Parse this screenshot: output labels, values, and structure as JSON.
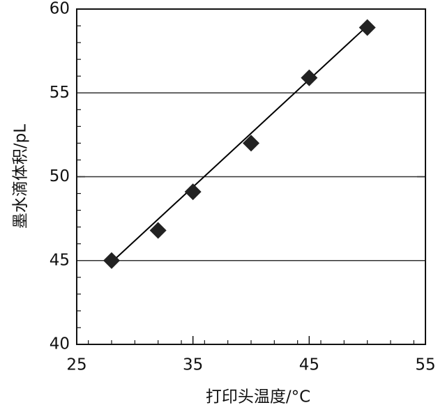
{
  "chart_data": {
    "type": "scatter",
    "x_label": "打印头温度/°C",
    "y_label": "墨水滴体积/pL",
    "x": [
      28,
      32,
      35,
      40,
      45,
      50
    ],
    "values": [
      45,
      46.8,
      49.1,
      52,
      55.9,
      58.9
    ],
    "color": "#222222",
    "fit_line": {
      "x": [
        28,
        50
      ],
      "values": [
        44.9,
        59
      ],
      "color": "#000000"
    },
    "xlim": [
      25,
      55
    ],
    "xticks": [
      25,
      35,
      45,
      55
    ],
    "xminor_step": 2,
    "ylim": [
      40,
      60
    ],
    "yticks": [
      40,
      45,
      50,
      55,
      60
    ],
    "yminor_step": 1,
    "grid": true
  }
}
